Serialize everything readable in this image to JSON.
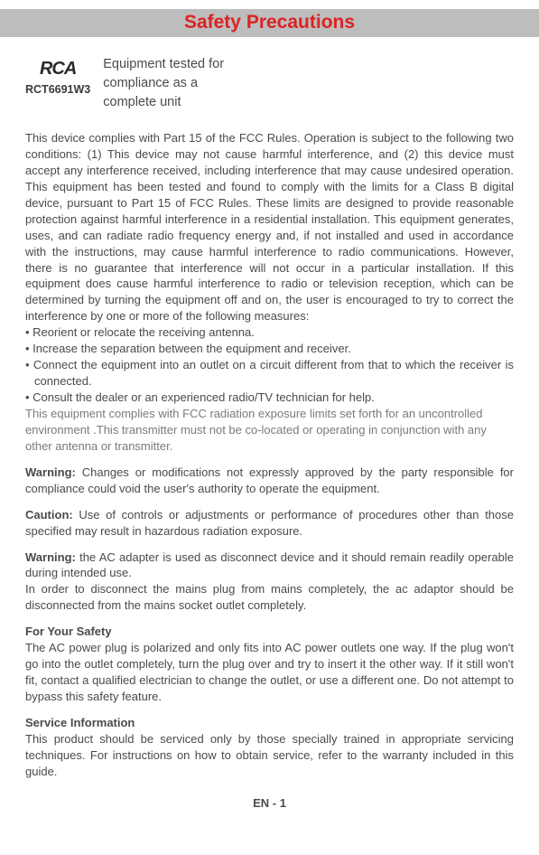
{
  "title": "Safety Precautions",
  "logo": "RCA",
  "model": "RCT6691W3",
  "tested_l1": "Equipment tested for",
  "tested_l2": "compliance as a",
  "tested_l3": "complete unit",
  "fcc_p1": "This device complies with Part 15 of the FCC Rules. Operation is subject to the following two conditions: (1) This device may not cause harmful interference, and (2) this device must accept any interference received, including interference that may cause undesired operation. This equipment has been tested and found to comply with the limits for a Class B digital device, pursuant to Part 15 of FCC Rules. These limits are designed to provide reasonable protection against harmful interference in a residential installation. This equipment generates, uses, and can radiate radio frequency energy and, if not installed and used in accordance with the instructions, may cause harmful interference to radio communications. However, there is no guarantee that interference will not occur in a particular installation. If this equipment does cause harmful interference to radio or television reception, which can be determined by turning the equipment off and on, the user is encouraged to try to correct the interference by one or more of the following measures:",
  "bullet1": "• Reorient or relocate the receiving antenna.",
  "bullet2": "• Increase the separation between the equipment and receiver.",
  "bullet3": "• Connect the equipment into an outlet on a circuit different from that to which the receiver is connected.",
  "bullet4": "• Consult the dealer or an experienced radio/TV technician for help.",
  "grey1": "This equipment complies with FCC radiation exposure limits set forth for an uncontrolled",
  "grey2": "environment .This transmitter must not be co-located or operating in conjunction with any",
  "grey3": "other antenna or transmitter.",
  "warn1_label": "Warning:",
  "warn1_text": " Changes or modifications not expressly approved by the party responsible for compliance could void the user's authority to operate the equipment.",
  "caution_label": "Caution:",
  "caution_text": " Use of controls or adjustments or performance of procedures other than those specified may result in hazardous radiation exposure.",
  "warn2_label": "Warning:",
  "warn2_text_a": " the AC adapter is used as disconnect device and it should remain readily operable during intended use.",
  "warn2_text_b": "In order to disconnect the mains plug from mains completely, the ac adaptor should be disconnected from the mains socket outlet completely.",
  "safety_head": "For Your Safety",
  "safety_text": "The AC power plug is polarized and only fits into AC power outlets one way. If the plug won't go into the outlet completely, turn the plug over and try to insert it the other way. If it still won't fit, contact a qualified electrician to change the outlet, or use a different one. Do not attempt to bypass this safety feature.",
  "service_head": "Service Information",
  "service_text": "This product should be serviced only by those specially trained in appropriate servicing techniques. For instructions on how to obtain service, refer to the warranty included in this guide.",
  "footer": "EN - 1"
}
